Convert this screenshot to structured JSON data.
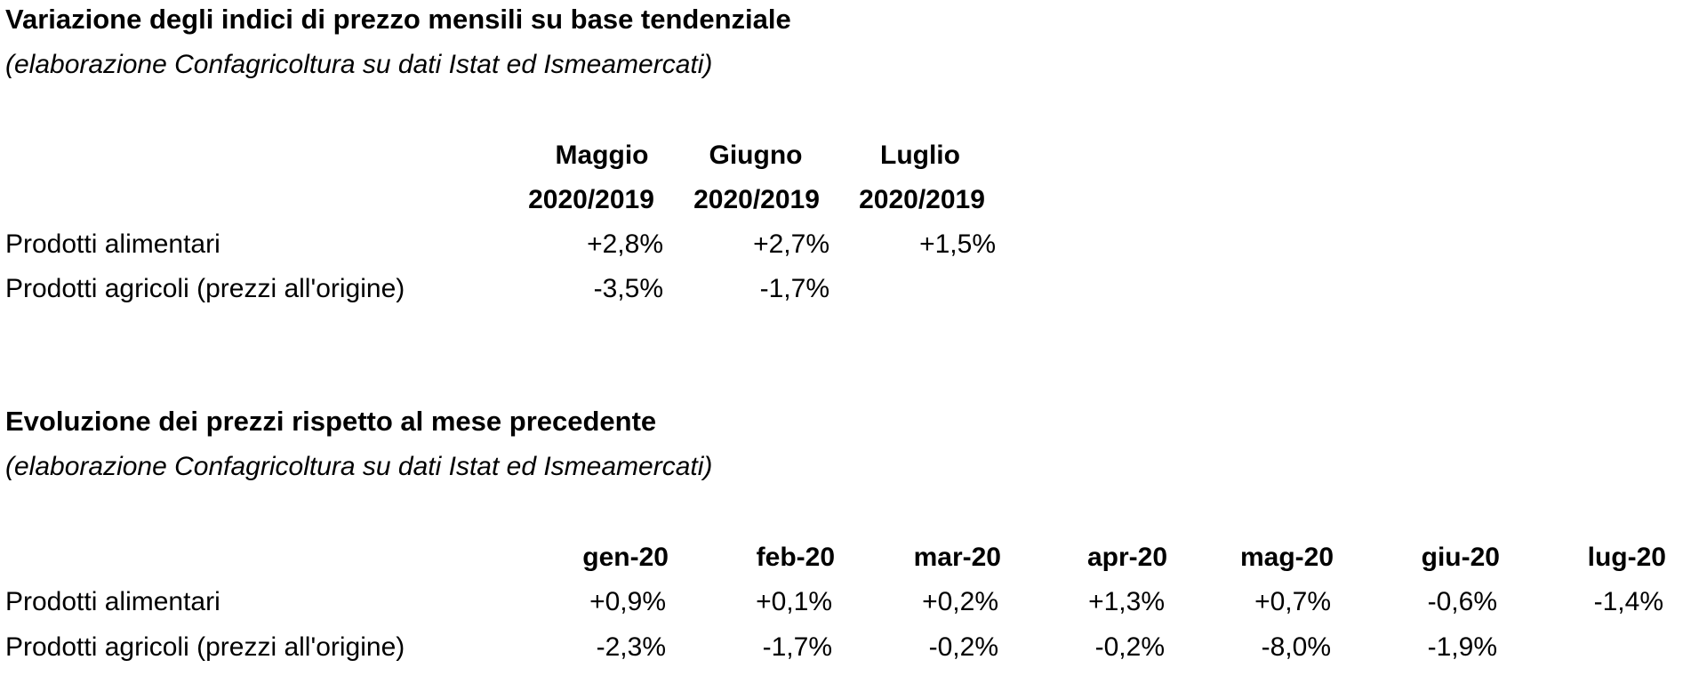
{
  "table1": {
    "title": "Variazione degli indici di prezzo mensili su base tendenziale",
    "subtitle": "(elaborazione Confagricoltura su dati Istat ed Ismeamercati)",
    "columns": [
      {
        "line1": "Maggio",
        "line2": "2020/2019"
      },
      {
        "line1": "Giugno",
        "line2": "2020/2019"
      },
      {
        "line1": "Luglio",
        "line2": "2020/2019"
      }
    ],
    "rows": [
      {
        "label": "Prodotti alimentari",
        "values": [
          "+2,8%",
          "+2,7%",
          "+1,5%"
        ]
      },
      {
        "label": "Prodotti agricoli (prezzi all'origine)",
        "values": [
          "-3,5%",
          "-1,7%",
          ""
        ]
      }
    ]
  },
  "table2": {
    "title": "Evoluzione dei prezzi rispetto al mese precedente",
    "subtitle": "(elaborazione Confagricoltura su dati Istat ed Ismeamercati)",
    "columns": [
      "gen-20",
      "feb-20",
      "mar-20",
      "apr-20",
      "mag-20",
      "giu-20",
      "lug-20"
    ],
    "rows": [
      {
        "label": "Prodotti alimentari",
        "values": [
          "+0,9%",
          "+0,1%",
          "+0,2%",
          "+1,3%",
          "+0,7%",
          "-0,6%",
          "-1,4%"
        ]
      },
      {
        "label": "Prodotti agricoli (prezzi all'origine)",
        "values": [
          "-2,3%",
          "-1,7%",
          "-0,2%",
          "-0,2%",
          "-8,0%",
          "-1,9%",
          ""
        ]
      }
    ]
  }
}
